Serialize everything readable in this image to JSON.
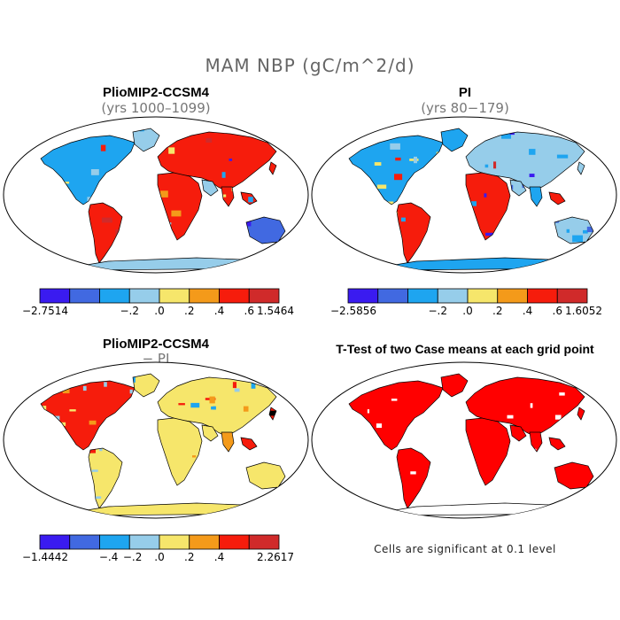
{
  "main_title": "MAM NBP (gC/m^2/d)",
  "palette": [
    "#3a1bf0",
    "#4169e1",
    "#1ea5f0",
    "#96cdea",
    "#f6e66b",
    "#f49a1a",
    "#f61c0c",
    "#d02a2a"
  ],
  "land_color": "#7a7a7a",
  "panels": [
    {
      "title": "PlioMIP2-CCSM4",
      "subtitle": "(yrs 1000–1099)",
      "colorbar_ticks": [
        "−2.7514",
        "−.2",
        ".0",
        ".2",
        ".4",
        ".6",
        "1.5464"
      ]
    },
    {
      "title": "PI",
      "subtitle": "(yrs 80−179)",
      "colorbar_ticks": [
        "−2.5856",
        "−.2",
        ".0",
        ".2",
        ".4",
        ".6",
        "1.6052"
      ]
    },
    {
      "title": "PlioMIP2-CCSM4",
      "subtitle": "− PI",
      "colorbar_ticks": [
        "−1.4442",
        "−.4",
        "−.2",
        ".0",
        ".2",
        ".4",
        "2.2617"
      ]
    },
    {
      "title": "T-Test of two Case means at each grid point",
      "note": "Cells are significant at 0.1 level",
      "significant_color": "#ff0000"
    }
  ]
}
